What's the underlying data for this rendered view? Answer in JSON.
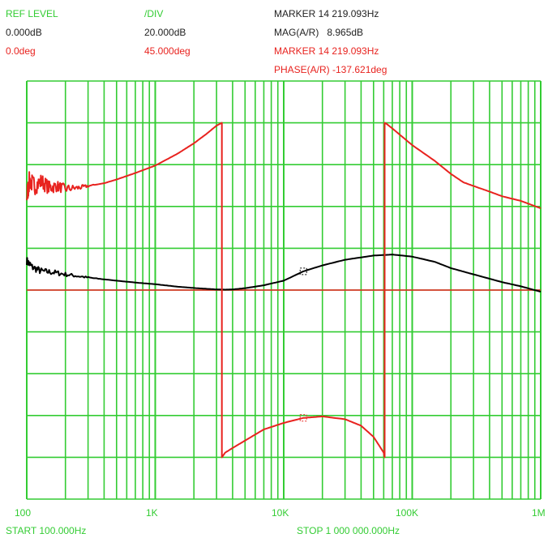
{
  "header": {
    "ref_level_label": "REF LEVEL",
    "div_label": "/DIV",
    "mag_ref_value": "0.000dB",
    "mag_div_value": "20.000dB",
    "phase_ref_value": "0.0deg",
    "phase_div_value": "45.000deg",
    "marker_mag_line": "MARKER 14 219.093Hz",
    "mag_readout": "MAG(A/R)   8.965dB",
    "marker_phase_line": "MARKER 14 219.093Hz",
    "phase_readout": "PHASE(A/R) -137.621deg"
  },
  "footer": {
    "start_label": "START 100.000Hz",
    "stop_label": "STOP 1 000 000.000Hz"
  },
  "colors": {
    "grid": "#33cc33",
    "magnitude": "#000000",
    "phase": "#e8231f",
    "text_green": "#33cc33"
  },
  "chart_data": {
    "type": "line",
    "x_scale": "log",
    "xlim": [
      100,
      1000000
    ],
    "x_tick_labels": [
      "100",
      "1K",
      "10K",
      "100K",
      "1M"
    ],
    "x_tick_values": [
      100,
      1000,
      10000,
      100000,
      1000000
    ],
    "y_divisions": 10,
    "grid": true,
    "marker_frequency_hz": 14219.093,
    "series": [
      {
        "reference": 0,
        "per_div": 20,
        "unit": "dB",
        "x": [
          100,
          110,
          130,
          160,
          200,
          260,
          350,
          500,
          700,
          1000,
          1500,
          2000,
          3000,
          3500,
          4000,
          5000,
          7000,
          10000,
          14219,
          20000,
          30000,
          50000,
          70000,
          100000,
          150000,
          200000,
          300000,
          500000,
          700000,
          1000000
        ],
        "values": [
          14,
          11,
          9,
          8.5,
          7.5,
          6.5,
          5.5,
          4.5,
          3.6,
          2.8,
          1.6,
          1.0,
          0.3,
          0.2,
          0.3,
          0.9,
          2.3,
          4.5,
          8.965,
          11.8,
          14.5,
          16.5,
          17,
          16,
          13.5,
          10.5,
          7.5,
          3.8,
          1.8,
          -0.8
        ]
      },
      {
        "reference": 0,
        "per_div": 45,
        "unit": "deg",
        "x": [
          100,
          105,
          115,
          130,
          150,
          170,
          200,
          250,
          300,
          400,
          500,
          700,
          1000,
          1500,
          2000,
          2500,
          3000,
          3300,
          3301,
          3500,
          4000,
          5000,
          7000,
          10000,
          14219,
          20000,
          30000,
          40000,
          50000,
          60000,
          61000,
          61001,
          63000,
          70000,
          100000,
          150000,
          200000,
          250000,
          300000,
          400000,
          500000,
          700000,
          1000000
        ],
        "values": [
          100,
          118,
          112,
          117,
          110,
          112,
          109,
          110,
          112,
          115,
          119,
          126,
          134,
          147,
          158,
          168,
          177,
          180,
          -180,
          -175,
          -170,
          -162,
          -150,
          -143,
          -137.621,
          -136,
          -139,
          -146,
          -158,
          -175,
          -180,
          180,
          179,
          174,
          156,
          139,
          125,
          116,
          112,
          106,
          101,
          96,
          88
        ]
      }
    ]
  }
}
